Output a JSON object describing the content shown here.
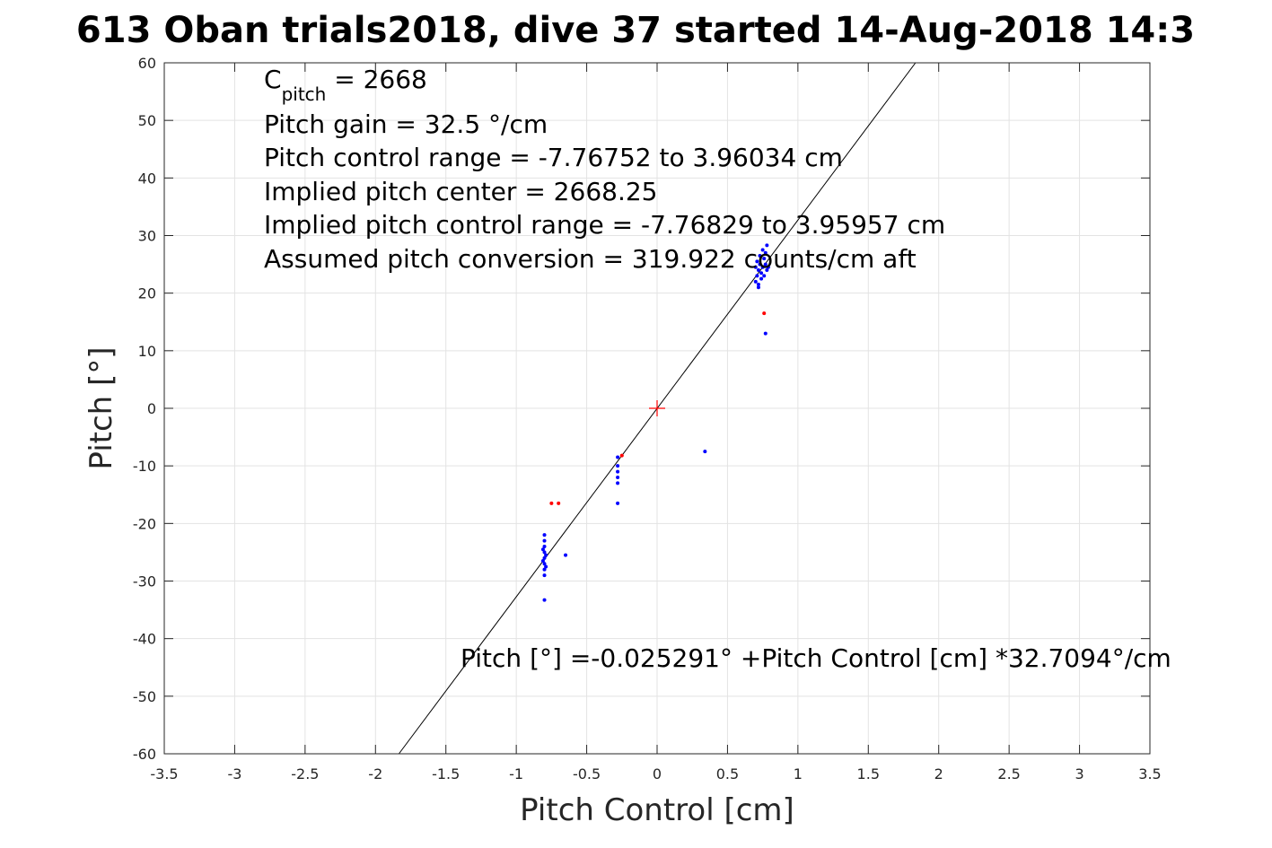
{
  "chart_data": {
    "type": "scatter",
    "title": "613 Oban trials2018, dive 37 started 14-Aug-2018 14:3",
    "xlabel": "Pitch Control [cm]",
    "ylabel": "Pitch [°]",
    "xlim": [
      -3.5,
      3.5
    ],
    "ylim": [
      -60,
      60
    ],
    "grid": true,
    "xticks": [
      "-3.5",
      "-3",
      "-2.5",
      "-2",
      "-1.5",
      "-1",
      "-0.5",
      "0",
      "0.5",
      "1",
      "1.5",
      "2",
      "2.5",
      "3",
      "3.5"
    ],
    "yticks": [
      "60",
      "50",
      "40",
      "30",
      "20",
      "10",
      "0",
      "-10",
      "-20",
      "-30",
      "-40",
      "-50",
      "-60"
    ],
    "fit_line": {
      "intercept": -0.025291,
      "slope": 32.7094
    },
    "center_marker": {
      "x": 0,
      "y": 0,
      "color": "#ff0000"
    },
    "series": [
      {
        "color": "#0000ff",
        "points": [
          [
            0.7,
            22.0
          ],
          [
            0.71,
            23.0
          ],
          [
            0.72,
            24.0
          ],
          [
            0.73,
            25.0
          ],
          [
            0.74,
            23.5
          ],
          [
            0.75,
            24.5
          ],
          [
            0.76,
            26.0
          ],
          [
            0.77,
            27.0
          ],
          [
            0.78,
            28.3
          ],
          [
            0.72,
            21.5
          ],
          [
            0.74,
            22.5
          ],
          [
            0.76,
            23.0
          ],
          [
            0.78,
            24.0
          ],
          [
            0.7,
            24.5
          ],
          [
            0.71,
            25.5
          ],
          [
            0.73,
            26.5
          ],
          [
            0.75,
            27.5
          ],
          [
            0.77,
            25.0
          ],
          [
            0.79,
            24.5
          ],
          [
            0.72,
            21.0
          ],
          [
            0.77,
            13.0
          ],
          [
            -0.8,
            -22.0
          ],
          [
            -0.8,
            -23.0
          ],
          [
            -0.8,
            -24.0
          ],
          [
            -0.8,
            -25.0
          ],
          [
            -0.8,
            -26.0
          ],
          [
            -0.8,
            -27.0
          ],
          [
            -0.8,
            -28.0
          ],
          [
            -0.8,
            -29.0
          ],
          [
            -0.79,
            -25.5
          ],
          [
            -0.81,
            -26.5
          ],
          [
            -0.79,
            -27.5
          ],
          [
            -0.81,
            -24.5
          ],
          [
            -0.8,
            -33.3
          ],
          [
            -0.65,
            -25.5
          ],
          [
            -0.28,
            -8.5
          ],
          [
            -0.28,
            -10.0
          ],
          [
            -0.28,
            -11.0
          ],
          [
            -0.28,
            -12.0
          ],
          [
            -0.28,
            -13.0
          ],
          [
            -0.28,
            -16.5
          ],
          [
            0.34,
            -7.5
          ]
        ]
      },
      {
        "color": "#ff0000",
        "points": [
          [
            0.76,
            16.5
          ],
          [
            -0.75,
            -16.5
          ],
          [
            -0.7,
            -16.5
          ],
          [
            -0.25,
            -8.2
          ]
        ]
      }
    ],
    "annotations": {
      "cpitch_main": "C",
      "cpitch_sub": "pitch",
      "cpitch_value": " = 2668",
      "pitch_gain": "Pitch gain = 32.5 °/cm",
      "control_range": "Pitch control range = -7.76752 to 3.96034 cm",
      "implied_center": "Implied pitch center = 2668.25",
      "implied_range": "Implied pitch control range = -7.76829 to 3.95957 cm",
      "conversion": "Assumed pitch conversion = 319.922 counts/cm aft",
      "fit_equation": "Pitch [°] =-0.025291° +Pitch Control [cm] *32.7094°/cm"
    }
  }
}
